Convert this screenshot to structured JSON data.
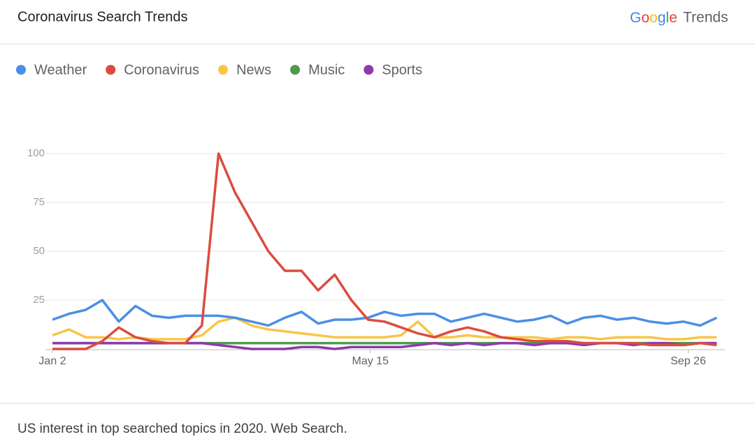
{
  "chart_data": {
    "type": "line",
    "title": "Coronavirus Search Trends",
    "logo": {
      "brand": "Google",
      "product": "Trends"
    },
    "footnote": "US interest in top searched topics in 2020. Web Search.",
    "x": [
      0,
      7,
      14,
      21,
      28,
      35,
      42,
      49,
      56,
      63,
      70,
      77,
      84,
      91,
      98,
      105,
      112,
      119,
      126,
      133,
      140,
      147,
      154,
      161,
      168,
      175,
      182,
      189,
      196,
      203,
      210,
      217,
      224,
      231,
      238,
      245,
      252,
      259,
      266,
      273,
      280
    ],
    "xlim": [
      0,
      282
    ],
    "xticks": [
      {
        "value": 0,
        "label": "Jan 2"
      },
      {
        "value": 134,
        "label": "May 15"
      },
      {
        "value": 268,
        "label": "Sep 26"
      }
    ],
    "ylim": [
      0,
      100
    ],
    "yticks": [
      25,
      50,
      75,
      100
    ],
    "grid": true,
    "series": [
      {
        "name": "Weather",
        "color": "#4a8fe7",
        "values": [
          15,
          18,
          20,
          25,
          14,
          22,
          17,
          16,
          17,
          17,
          17,
          16,
          14,
          12,
          16,
          19,
          13,
          15,
          15,
          16,
          19,
          17,
          18,
          18,
          14,
          16,
          18,
          16,
          14,
          15,
          17,
          13,
          16,
          17,
          15,
          16,
          14,
          13,
          14,
          12,
          16
        ]
      },
      {
        "name": "Coronavirus",
        "color": "#db4c3f",
        "values": [
          0,
          0,
          0,
          4,
          11,
          6,
          4,
          3,
          3,
          12,
          100,
          80,
          65,
          50,
          40,
          40,
          30,
          38,
          25,
          15,
          14,
          11,
          8,
          6,
          9,
          11,
          9,
          6,
          5,
          4,
          4,
          4,
          3,
          3,
          3,
          3,
          2,
          2,
          2,
          3,
          2
        ]
      },
      {
        "name": "News",
        "color": "#f8c546",
        "values": [
          7,
          10,
          6,
          6,
          5,
          6,
          5,
          5,
          5,
          7,
          14,
          16,
          12,
          10,
          9,
          8,
          7,
          6,
          6,
          6,
          6,
          7,
          14,
          6,
          6,
          7,
          6,
          6,
          6,
          6,
          5,
          6,
          6,
          5,
          6,
          6,
          6,
          5,
          5,
          6,
          6
        ]
      },
      {
        "name": "Music",
        "color": "#4e9a4c",
        "values": [
          3,
          3,
          3,
          3,
          3,
          3,
          3,
          3,
          3,
          3,
          3,
          3,
          3,
          3,
          3,
          3,
          3,
          3,
          3,
          3,
          3,
          3,
          3,
          3,
          3,
          3,
          3,
          3,
          3,
          3,
          3,
          3,
          3,
          3,
          3,
          3,
          3,
          3,
          3,
          3,
          3
        ]
      },
      {
        "name": "Sports",
        "color": "#8e3aab",
        "values": [
          3,
          3,
          3,
          3,
          3,
          3,
          3,
          3,
          3,
          3,
          2,
          1,
          0,
          0,
          0,
          1,
          1,
          0,
          1,
          1,
          1,
          1,
          2,
          3,
          2,
          3,
          2,
          3,
          3,
          2,
          3,
          3,
          2,
          3,
          3,
          2,
          3,
          3,
          2,
          3,
          3
        ]
      }
    ]
  }
}
